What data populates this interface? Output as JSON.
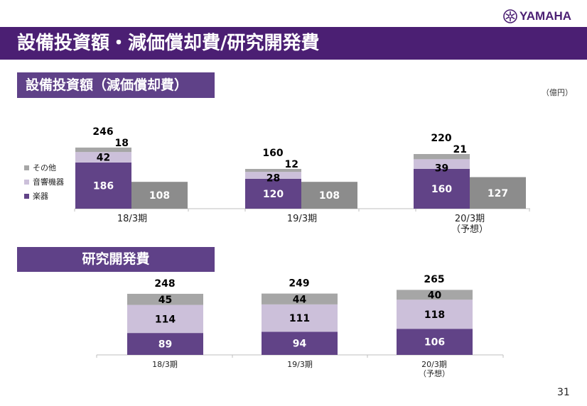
{
  "brand": {
    "logo_text": "YAMAHA",
    "logo_icon": "tuning-forks-emblem"
  },
  "page": {
    "title": "設備投資額・減価償却費/研究開発費",
    "unit_label": "（億円）",
    "page_number": "31"
  },
  "colors": {
    "title_bar": "#4b1f73",
    "section_header": "#5f4188",
    "instruments": "#614387",
    "audio": "#ccc0da",
    "other": "#a6a6a6",
    "depreciation": "#8c8c8c",
    "axis": "#bfbfbf"
  },
  "sections": {
    "capex": {
      "header": "設備投資額（減価償却費）"
    },
    "rnd": {
      "header": "研究開発費"
    }
  },
  "legend": [
    {
      "label": "その他",
      "series": "other"
    },
    {
      "label": "音響機器",
      "series": "audio"
    },
    {
      "label": "楽器",
      "series": "instruments"
    }
  ],
  "chart_data": [
    {
      "type": "bar",
      "stacked": true,
      "title": "設備投資額（減価償却費）",
      "xlabel": "",
      "ylabel": "",
      "unit": "億円",
      "categories": [
        "18/3期",
        "19/3期",
        "20/3期"
      ],
      "category_sublabels": [
        "",
        "",
        "（予想）"
      ],
      "series": [
        {
          "name": "楽器",
          "key": "instruments",
          "values": [
            186,
            120,
            160
          ]
        },
        {
          "name": "音響機器",
          "key": "audio",
          "values": [
            42,
            28,
            39
          ]
        },
        {
          "name": "その他",
          "key": "other",
          "values": [
            18,
            12,
            21
          ]
        }
      ],
      "totals": [
        246,
        160,
        220
      ],
      "secondary_series": {
        "name": "減価償却費",
        "key": "depreciation",
        "values": [
          108,
          108,
          127
        ]
      },
      "ylim": [
        0,
        260
      ],
      "grid": false,
      "legend_position": "left"
    },
    {
      "type": "bar",
      "stacked": true,
      "title": "研究開発費",
      "xlabel": "",
      "ylabel": "",
      "unit": "億円",
      "categories": [
        "18/3期",
        "19/3期",
        "20/3期"
      ],
      "category_sublabels": [
        "",
        "",
        "（予想）"
      ],
      "series": [
        {
          "name": "楽器",
          "key": "instruments",
          "values": [
            89,
            94,
            106
          ]
        },
        {
          "name": "音響機器",
          "key": "audio",
          "values": [
            114,
            111,
            118
          ]
        },
        {
          "name": "その他",
          "key": "other",
          "values": [
            45,
            44,
            40
          ]
        }
      ],
      "totals": [
        248,
        249,
        265
      ],
      "ylim": [
        0,
        280
      ],
      "grid": false,
      "legend_position": "none"
    }
  ]
}
